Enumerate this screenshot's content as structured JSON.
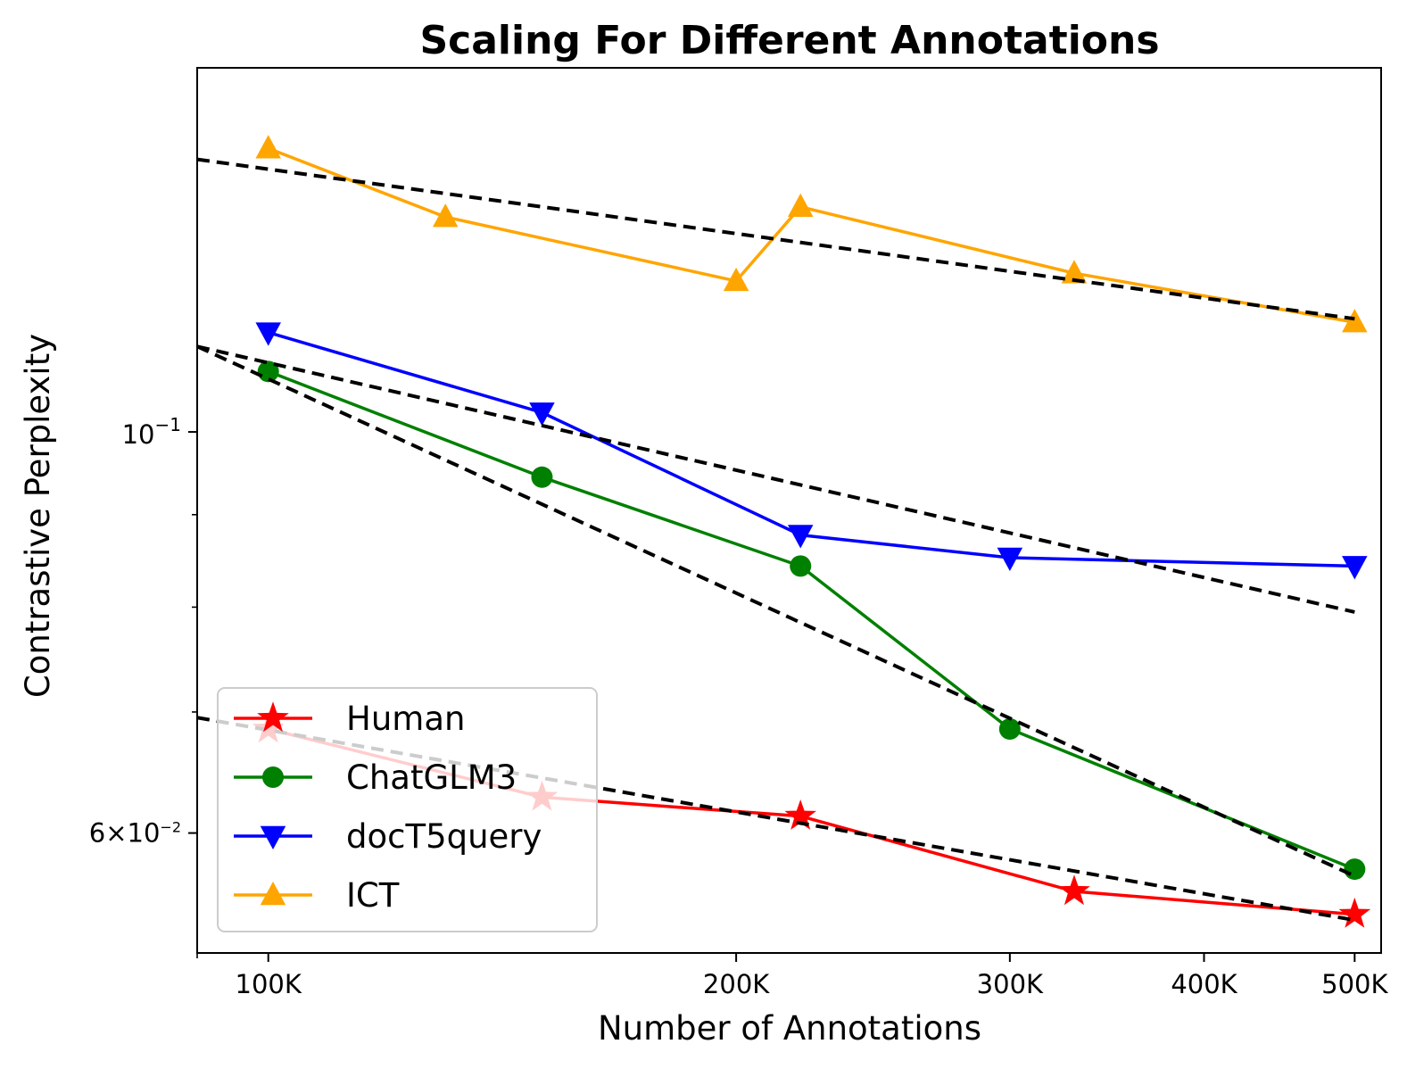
{
  "chart_data": {
    "type": "line",
    "title": "Scaling For Different Annotations",
    "xlabel": "Number of Annotations",
    "ylabel": "Contrastive Perplexity",
    "xscale": "log",
    "yscale": "log",
    "xlim": [
      90000,
      520000
    ],
    "ylim": [
      0.0515,
      0.159
    ],
    "x_ticks": [
      {
        "value": 100000,
        "label": "100K"
      },
      {
        "value": 200000,
        "label": "200K"
      },
      {
        "value": 300000,
        "label": "300K"
      },
      {
        "value": 400000,
        "label": "400K"
      },
      {
        "value": 500000,
        "label": "500K"
      }
    ],
    "x_minor_ticks": [
      90000
    ],
    "y_ticks": [
      {
        "value": 0.1,
        "base": "10",
        "exp": "−1"
      },
      {
        "value": 0.06,
        "base": "6×10",
        "exp": "−2"
      }
    ],
    "y_minor_ticks": [
      0.07,
      0.08,
      0.09
    ],
    "grid": false,
    "legend_position": "lower-left",
    "series": [
      {
        "name": "Human",
        "color": "#ff0000",
        "marker": "star",
        "x": [
          100000,
          150000,
          220000,
          330000,
          500000
        ],
        "y": [
          0.0685,
          0.0628,
          0.0613,
          0.0557,
          0.0541
        ]
      },
      {
        "name": "ChatGLM3",
        "color": "#008000",
        "marker": "circle",
        "x": [
          100000,
          150000,
          220000,
          300000,
          500000
        ],
        "y": [
          0.108,
          0.0944,
          0.0843,
          0.0685,
          0.0573
        ]
      },
      {
        "name": "docT5query",
        "color": "#0000ff",
        "marker": "triangle-down",
        "x": [
          100000,
          150000,
          220000,
          300000,
          500000
        ],
        "y": [
          0.1135,
          0.1025,
          0.0877,
          0.0852,
          0.0843
        ]
      },
      {
        "name": "ICT",
        "color": "#ffa500",
        "marker": "triangle-up",
        "x": [
          100000,
          130000,
          200000,
          220000,
          330000,
          500000
        ],
        "y": [
          0.1435,
          0.1315,
          0.1212,
          0.1332,
          0.1224,
          0.115
        ]
      }
    ],
    "fit_lines": [
      {
        "color": "#000000",
        "x": [
          90000,
          500000
        ],
        "y": [
          0.1415,
          0.1155
        ]
      },
      {
        "color": "#000000",
        "x": [
          90000,
          500000
        ],
        "y": [
          0.1115,
          0.0795
        ]
      },
      {
        "color": "#000000",
        "x": [
          90000,
          500000
        ],
        "y": [
          0.1115,
          0.0568
        ]
      },
      {
        "color": "#000000",
        "x": [
          90000,
          500000
        ],
        "y": [
          0.0695,
          0.0537
        ]
      }
    ]
  }
}
